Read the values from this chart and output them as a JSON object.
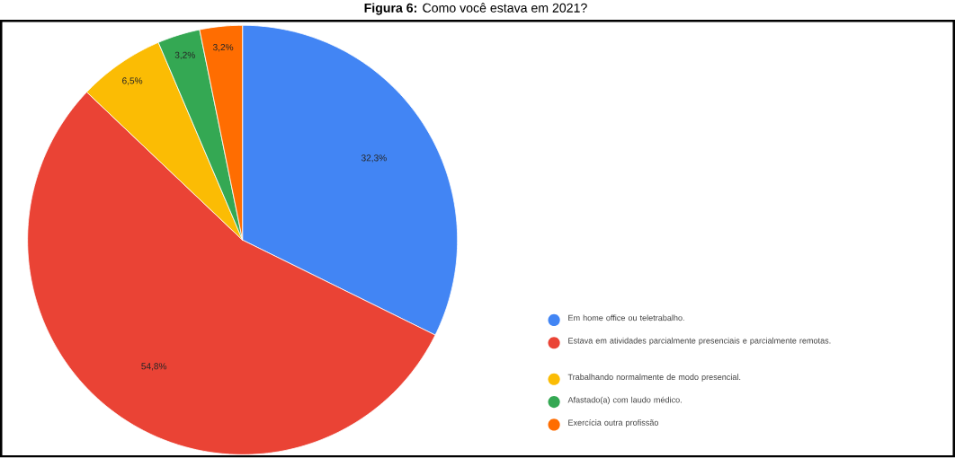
{
  "chart_data": {
    "type": "pie",
    "title": "**Figura 6:** Como você estava em 2021?",
    "categories": [
      "Em home office ou teletrabalho.",
      "Estava em atividades parcialmente presenciais e parcialmente remotas.",
      "Trabalhando normalmente de modo presencial.",
      "Afastado(a) com laudo médico.",
      "Exercícia outra profissão"
    ],
    "values": [
      32.3,
      54.8,
      6.5,
      3.2,
      3.2
    ],
    "value_labels": [
      "32,3%",
      "54,8%",
      "6,5%",
      "3,2%",
      "3,2%"
    ],
    "colors": [
      "#4285f4",
      "#ea4335",
      "#fbbc04",
      "#34a853",
      "#ff6d01"
    ],
    "legend": "right"
  }
}
